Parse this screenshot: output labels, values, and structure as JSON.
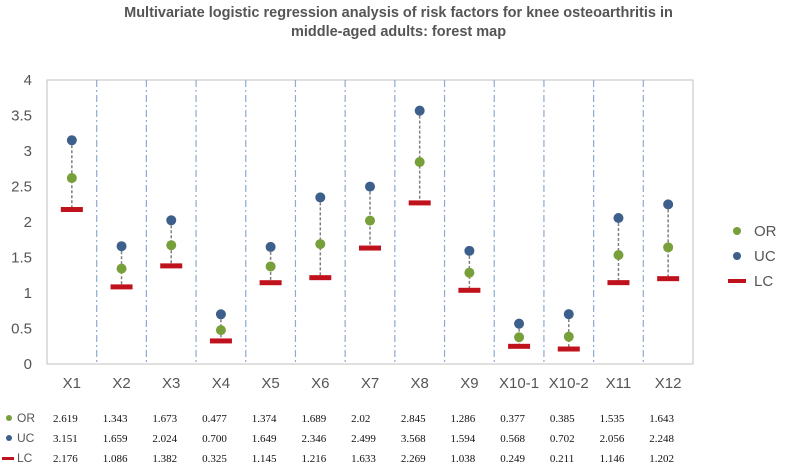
{
  "chart_data": {
    "type": "scatter",
    "title_line1": "Multivariate logistic regression analysis of risk factors for knee osteoarthritis in",
    "title_line2": "middle-aged adults: forest map",
    "categories": [
      "X1",
      "X2",
      "X3",
      "X4",
      "X5",
      "X6",
      "X7",
      "X8",
      "X9",
      "X10-1",
      "X10-2",
      "X11",
      "X12"
    ],
    "ylim": [
      0,
      4
    ],
    "yticks": [
      "0",
      "0.5",
      "1",
      "1.5",
      "2",
      "2.5",
      "3",
      "3.5",
      "4"
    ],
    "grid": false,
    "legend_position": "right",
    "series": [
      {
        "name": "OR",
        "marker": "circle",
        "color": "#77a03a",
        "values": [
          2.619,
          1.343,
          1.673,
          0.477,
          1.374,
          1.689,
          2.02,
          2.845,
          1.286,
          0.377,
          0.385,
          1.535,
          1.643
        ],
        "labels": [
          "2.619",
          "1.343",
          "1.673",
          "0.477",
          "1.374",
          "1.689",
          "2.02",
          "2.845",
          "1.286",
          "0.377",
          "0.385",
          "1.535",
          "1.643"
        ]
      },
      {
        "name": "UC",
        "marker": "circle",
        "color": "#3d5f8c",
        "values": [
          3.151,
          1.659,
          2.024,
          0.7,
          1.649,
          2.346,
          2.499,
          3.568,
          1.594,
          0.568,
          0.702,
          2.056,
          2.248
        ],
        "labels": [
          "3.151",
          "1.659",
          "2.024",
          "0.700",
          "1.649",
          "2.346",
          "2.499",
          "3.568",
          "1.594",
          "0.568",
          "0.702",
          "2.056",
          "2.248"
        ]
      },
      {
        "name": "LC",
        "marker": "dash",
        "color": "#c0121c",
        "values": [
          2.176,
          1.086,
          1.382,
          0.325,
          1.145,
          1.216,
          1.633,
          2.269,
          1.038,
          0.249,
          0.211,
          1.146,
          1.202
        ],
        "labels": [
          "2.176",
          "1.086",
          "1.382",
          "0.325",
          "1.145",
          "1.216",
          "1.633",
          "2.269",
          "1.038",
          "0.249",
          "0.211",
          "1.146",
          "1.202"
        ]
      }
    ]
  }
}
